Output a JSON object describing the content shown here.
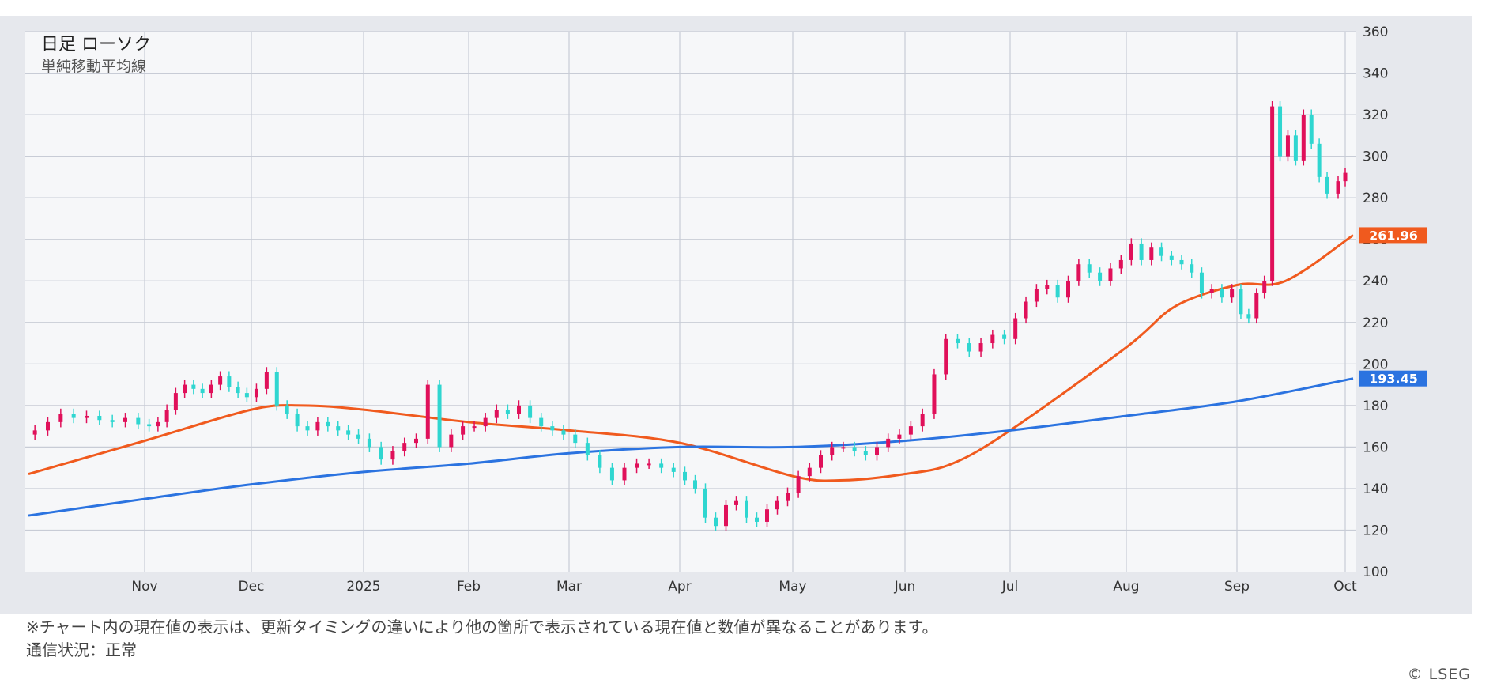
{
  "chart_data": {
    "type": "candlestick",
    "title": "日足 ローソク",
    "subtitle": "単純移動平均線",
    "x_labels": [
      "Nov",
      "Dec",
      "2025",
      "Feb",
      "Mar",
      "Apr",
      "May",
      "Jun",
      "Jul",
      "Aug",
      "Sep",
      "Oct"
    ],
    "y_ticks": [
      100,
      120,
      140,
      160,
      180,
      200,
      220,
      240,
      260,
      280,
      300,
      320,
      340,
      360
    ],
    "ylim": [
      100,
      360
    ],
    "grid": true,
    "axis_position": "right",
    "colors": {
      "up": "#e0105a",
      "down": "#2fd6d0",
      "ma_short": "#f05a1e",
      "ma_long": "#2b73e0",
      "plot_bg": "#f6f7f9",
      "frame_bg": "#e6e8ed",
      "grid": "#c8ccd6"
    },
    "price_series": [
      {
        "date": "Oct 2024",
        "value": 168
      },
      {
        "date": "Oct 2024",
        "value": 172
      },
      {
        "date": "Oct 2024",
        "value": 176
      },
      {
        "date": "Oct 2024",
        "value": 174
      },
      {
        "date": "Oct 2024",
        "value": 175
      },
      {
        "date": "Oct 2024",
        "value": 173
      },
      {
        "date": "Oct 2024",
        "value": 172
      },
      {
        "date": "Oct 2024",
        "value": 174
      },
      {
        "date": "Oct 2024",
        "value": 171
      },
      {
        "date": "Nov",
        "value": 170
      },
      {
        "date": "Nov",
        "value": 172
      },
      {
        "date": "Nov",
        "value": 178
      },
      {
        "date": "Nov",
        "value": 186
      },
      {
        "date": "Nov",
        "value": 190
      },
      {
        "date": "Nov",
        "value": 188
      },
      {
        "date": "Nov",
        "value": 186
      },
      {
        "date": "Nov",
        "value": 190
      },
      {
        "date": "Nov",
        "value": 194
      },
      {
        "date": "Nov",
        "value": 189
      },
      {
        "date": "Nov",
        "value": 186
      },
      {
        "date": "Nov",
        "value": 184
      },
      {
        "date": "Dec",
        "value": 188
      },
      {
        "date": "Dec",
        "value": 196
      },
      {
        "date": "Dec",
        "value": 180
      },
      {
        "date": "Dec",
        "value": 176
      },
      {
        "date": "Dec",
        "value": 170
      },
      {
        "date": "Dec",
        "value": 168
      },
      {
        "date": "Dec",
        "value": 172
      },
      {
        "date": "Dec",
        "value": 170
      },
      {
        "date": "Dec",
        "value": 168
      },
      {
        "date": "Dec",
        "value": 166
      },
      {
        "date": "Dec",
        "value": 164
      },
      {
        "date": "2025",
        "value": 160
      },
      {
        "date": "2025",
        "value": 154
      },
      {
        "date": "2025",
        "value": 158
      },
      {
        "date": "2025",
        "value": 162
      },
      {
        "date": "2025",
        "value": 164
      },
      {
        "date": "2025",
        "value": 190
      },
      {
        "date": "2025",
        "value": 160
      },
      {
        "date": "2025",
        "value": 166
      },
      {
        "date": "2025",
        "value": 170
      },
      {
        "date": "Feb",
        "value": 170
      },
      {
        "date": "Feb",
        "value": 174
      },
      {
        "date": "Feb",
        "value": 178
      },
      {
        "date": "Feb",
        "value": 176
      },
      {
        "date": "Feb",
        "value": 180
      },
      {
        "date": "Feb",
        "value": 174
      },
      {
        "date": "Feb",
        "value": 170
      },
      {
        "date": "Feb",
        "value": 168
      },
      {
        "date": "Feb",
        "value": 166
      },
      {
        "date": "Mar",
        "value": 162
      },
      {
        "date": "Mar",
        "value": 156
      },
      {
        "date": "Mar",
        "value": 150
      },
      {
        "date": "Mar",
        "value": 144
      },
      {
        "date": "Mar",
        "value": 150
      },
      {
        "date": "Mar",
        "value": 152
      },
      {
        "date": "Mar",
        "value": 152
      },
      {
        "date": "Mar",
        "value": 150
      },
      {
        "date": "Mar",
        "value": 148
      },
      {
        "date": "Apr",
        "value": 144
      },
      {
        "date": "Apr",
        "value": 140
      },
      {
        "date": "Apr",
        "value": 126
      },
      {
        "date": "Apr",
        "value": 122
      },
      {
        "date": "Apr",
        "value": 132
      },
      {
        "date": "Apr",
        "value": 134
      },
      {
        "date": "Apr",
        "value": 126
      },
      {
        "date": "Apr",
        "value": 124
      },
      {
        "date": "Apr",
        "value": 130
      },
      {
        "date": "Apr",
        "value": 134
      },
      {
        "date": "Apr",
        "value": 138
      },
      {
        "date": "May",
        "value": 146
      },
      {
        "date": "May",
        "value": 150
      },
      {
        "date": "May",
        "value": 156
      },
      {
        "date": "May",
        "value": 160
      },
      {
        "date": "May",
        "value": 160
      },
      {
        "date": "May",
        "value": 158
      },
      {
        "date": "May",
        "value": 156
      },
      {
        "date": "May",
        "value": 160
      },
      {
        "date": "May",
        "value": 164
      },
      {
        "date": "May",
        "value": 166
      },
      {
        "date": "Jun",
        "value": 170
      },
      {
        "date": "Jun",
        "value": 176
      },
      {
        "date": "Jun",
        "value": 195
      },
      {
        "date": "Jun",
        "value": 212
      },
      {
        "date": "Jun",
        "value": 210
      },
      {
        "date": "Jun",
        "value": 206
      },
      {
        "date": "Jun",
        "value": 210
      },
      {
        "date": "Jun",
        "value": 214
      },
      {
        "date": "Jun",
        "value": 212
      },
      {
        "date": "Jul",
        "value": 222
      },
      {
        "date": "Jul",
        "value": 230
      },
      {
        "date": "Jul",
        "value": 236
      },
      {
        "date": "Jul",
        "value": 238
      },
      {
        "date": "Jul",
        "value": 232
      },
      {
        "date": "Jul",
        "value": 240
      },
      {
        "date": "Jul",
        "value": 248
      },
      {
        "date": "Jul",
        "value": 244
      },
      {
        "date": "Jul",
        "value": 240
      },
      {
        "date": "Jul",
        "value": 246
      },
      {
        "date": "Jul",
        "value": 250
      },
      {
        "date": "Aug",
        "value": 258
      },
      {
        "date": "Aug",
        "value": 250
      },
      {
        "date": "Aug",
        "value": 256
      },
      {
        "date": "Aug",
        "value": 252
      },
      {
        "date": "Aug",
        "value": 250
      },
      {
        "date": "Aug",
        "value": 248
      },
      {
        "date": "Aug",
        "value": 244
      },
      {
        "date": "Aug",
        "value": 234
      },
      {
        "date": "Aug",
        "value": 236
      },
      {
        "date": "Aug",
        "value": 232
      },
      {
        "date": "Aug",
        "value": 236
      },
      {
        "date": "Sep",
        "value": 224
      },
      {
        "date": "Sep",
        "value": 222
      },
      {
        "date": "Sep",
        "value": 234
      },
      {
        "date": "Sep",
        "value": 240
      },
      {
        "date": "Sep",
        "value": 324
      },
      {
        "date": "Sep",
        "value": 300
      },
      {
        "date": "Sep",
        "value": 310
      },
      {
        "date": "Sep",
        "value": 298
      },
      {
        "date": "Sep",
        "value": 320
      },
      {
        "date": "Sep",
        "value": 306
      },
      {
        "date": "Sep",
        "value": 290
      },
      {
        "date": "Sep",
        "value": 282
      },
      {
        "date": "Oct",
        "value": 288
      },
      {
        "date": "Oct",
        "value": 292
      }
    ],
    "moving_averages": [
      {
        "name": "short",
        "color": "#f05a1e",
        "last_value_label": "261.96",
        "points": [
          {
            "date": "Oct 2024",
            "value": 147
          },
          {
            "date": "Nov",
            "value": 163
          },
          {
            "date": "Dec",
            "value": 178
          },
          {
            "date": "Dec",
            "value": 180
          },
          {
            "date": "2025",
            "value": 178
          },
          {
            "date": "Feb",
            "value": 172
          },
          {
            "date": "Mar",
            "value": 168
          },
          {
            "date": "Apr",
            "value": 162
          },
          {
            "date": "May",
            "value": 146
          },
          {
            "date": "May",
            "value": 144
          },
          {
            "date": "Jun",
            "value": 147
          },
          {
            "date": "Jun",
            "value": 152
          },
          {
            "date": "Jul",
            "value": 168
          },
          {
            "date": "Aug",
            "value": 208
          },
          {
            "date": "Aug",
            "value": 228
          },
          {
            "date": "Sep",
            "value": 238
          },
          {
            "date": "Sep",
            "value": 240
          },
          {
            "date": "Oct",
            "value": 262
          }
        ]
      },
      {
        "name": "long",
        "color": "#2b73e0",
        "last_value_label": "193.45",
        "points": [
          {
            "date": "Oct 2024",
            "value": 127
          },
          {
            "date": "Nov",
            "value": 135
          },
          {
            "date": "Dec",
            "value": 142
          },
          {
            "date": "2025",
            "value": 148
          },
          {
            "date": "Feb",
            "value": 152
          },
          {
            "date": "Mar",
            "value": 157
          },
          {
            "date": "Apr",
            "value": 160
          },
          {
            "date": "May",
            "value": 160
          },
          {
            "date": "Jun",
            "value": 163
          },
          {
            "date": "Jul",
            "value": 168
          },
          {
            "date": "Aug",
            "value": 175
          },
          {
            "date": "Sep",
            "value": 182
          },
          {
            "date": "Oct",
            "value": 193
          }
        ]
      }
    ]
  },
  "footnote": {
    "line1": "※チャート内の現在値の表示は、更新タイミングの違いにより他の箇所で表示されている現在値と数値が異なることがあります。",
    "line2": "通信状況：正常"
  },
  "copyright": "© LSEG"
}
